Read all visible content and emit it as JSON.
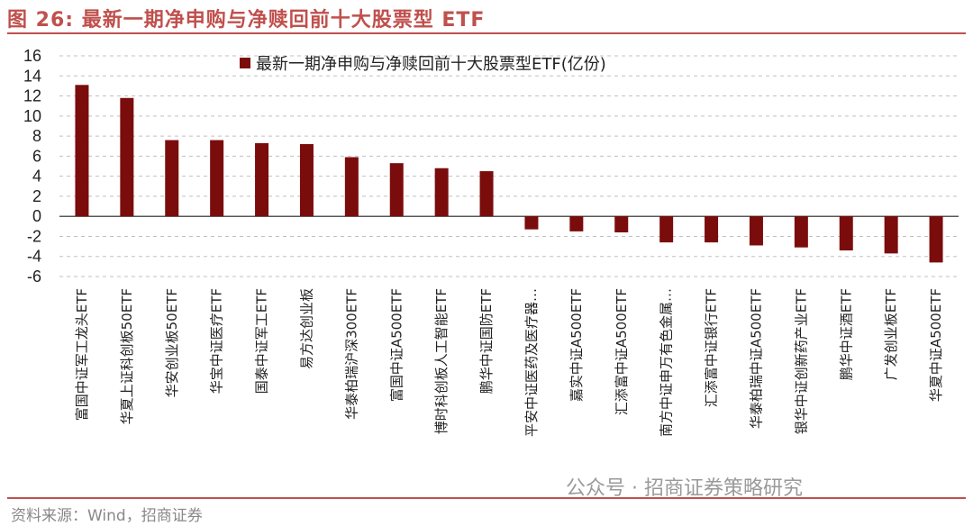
{
  "figure": {
    "title": "图 26:  最新一期净申购与净赎回前十大股票型 ETF",
    "source": "资料来源：Wind，招商证券",
    "watermark": "公众号 · 招商证券策略研究"
  },
  "colors": {
    "bar": "#7b0c0c",
    "accent": "#c0504d",
    "grid": "#c0c0c0"
  },
  "chart_data": {
    "type": "bar",
    "legend": [
      "最新一期净申购与净赎回前十大股票型ETF(亿份)"
    ],
    "legend_position": "top",
    "categories": [
      "富国中证军工龙头ETF",
      "华夏上证科创板50ETF",
      "华安创业板50ETF",
      "华宝中证医疗ETF",
      "国泰中证军工ETF",
      "易方达创业板",
      "华泰柏瑞沪深300ETF",
      "富国中证A500ETF",
      "博时科创板人工智能ETF",
      "鹏华中证国防ETF",
      "平安中证医药及医疗器…",
      "嘉实中证A500ETF",
      "汇添富中证A500ETF",
      "南方中证申万有色金属…",
      "汇添富中证银行ETF",
      "华泰柏瑞中证A500ETF",
      "银华中证创新药产业ETF",
      "鹏华中证酒ETF",
      "广发创业板ETF",
      "华夏中证A500ETF"
    ],
    "values": [
      13.1,
      11.8,
      7.6,
      7.6,
      7.3,
      7.2,
      5.9,
      5.3,
      4.8,
      4.5,
      -1.3,
      -1.5,
      -1.6,
      -2.6,
      -2.6,
      -2.9,
      -3.1,
      -3.4,
      -3.7,
      -4.6
    ],
    "ylim": [
      -6,
      16
    ],
    "yticks": [
      -6,
      -4,
      -2,
      0,
      2,
      4,
      6,
      8,
      10,
      12,
      14,
      16
    ],
    "grid": true
  }
}
